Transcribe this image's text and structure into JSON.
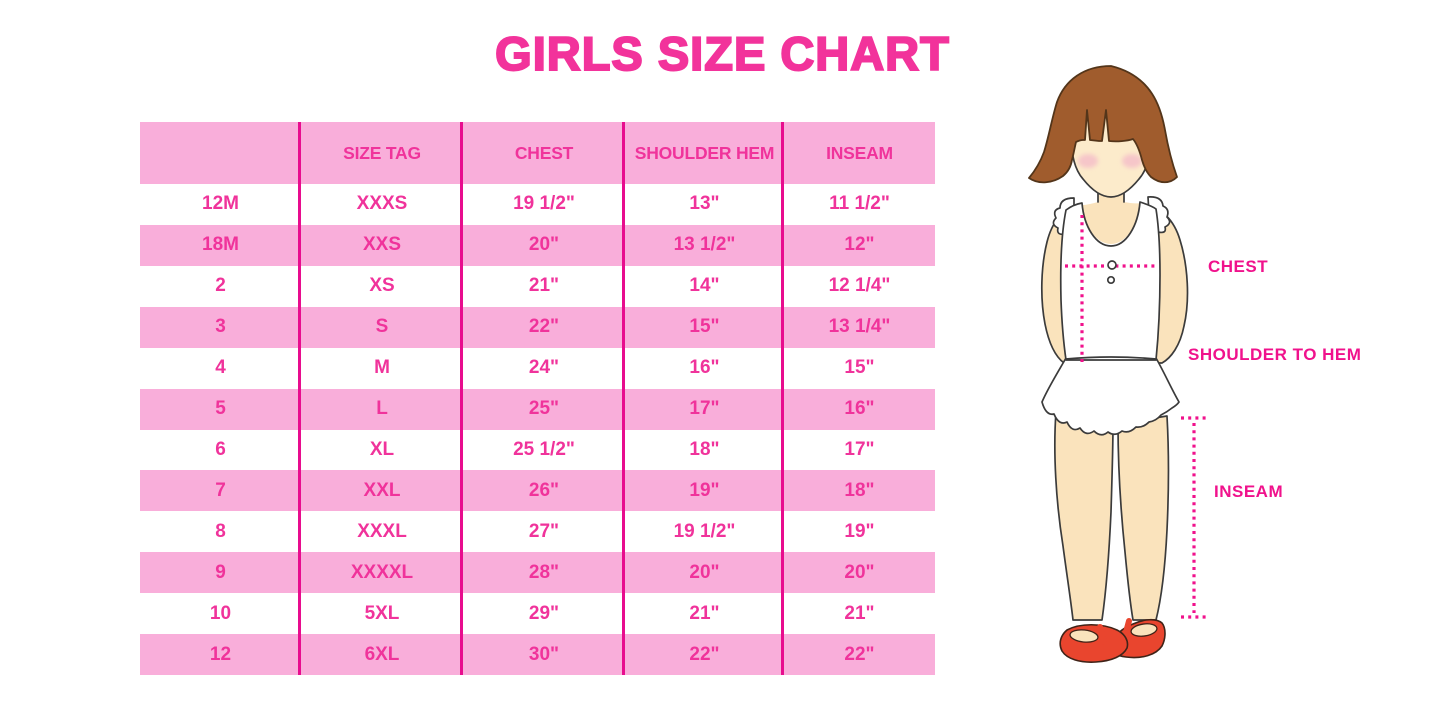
{
  "title": "GIRLS SIZE CHART",
  "chart_data": {
    "type": "table",
    "title": "GIRLS SIZE CHART",
    "columns": [
      "",
      "SIZE TAG",
      "CHEST",
      "SHOULDER HEM",
      "INSEAM"
    ],
    "rows": [
      [
        "12M",
        "XXXS",
        "19 1/2\"",
        "13\"",
        "11 1/2\""
      ],
      [
        "18M",
        "XXS",
        "20\"",
        "13 1/2\"",
        "12\""
      ],
      [
        "2",
        "XS",
        "21\"",
        "14\"",
        "12 1/4\""
      ],
      [
        "3",
        "S",
        "22\"",
        "15\"",
        "13 1/4\""
      ],
      [
        "4",
        "M",
        "24\"",
        "16\"",
        "15\""
      ],
      [
        "5",
        "L",
        "25\"",
        "17\"",
        "16\""
      ],
      [
        "6",
        "XL",
        "25 1/2\"",
        "18\"",
        "17\""
      ],
      [
        "7",
        "XXL",
        "26\"",
        "19\"",
        "18\""
      ],
      [
        "8",
        "XXXL",
        "27\"",
        "19 1/2\"",
        "19\""
      ],
      [
        "9",
        "XXXXL",
        "28\"",
        "20\"",
        "20\""
      ],
      [
        "10",
        "5XL",
        "29\"",
        "21\"",
        "21\""
      ],
      [
        "12",
        "6XL",
        "30\"",
        "22\"",
        "22\""
      ]
    ]
  },
  "figure": {
    "labels": {
      "chest": "CHEST",
      "shoulder_to_hem": "SHOULDER TO HEM",
      "inseam": "INSEAM"
    }
  },
  "colors": {
    "title_pink": "#F2339B",
    "cell_text_pink": "#F0339B",
    "row_pink": "#F9AEDA",
    "line_magenta": "#E80C8E",
    "dotted_magenta": "#F0128C",
    "shoe_red": "#E9452E",
    "hair_brown": "#A05C2D"
  }
}
